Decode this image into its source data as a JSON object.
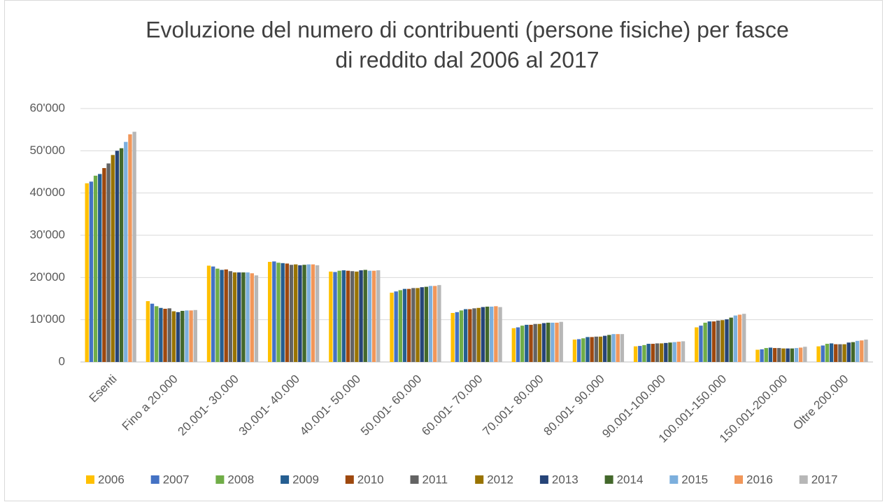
{
  "chart_data": {
    "type": "bar",
    "title": [
      "Evoluzione del numero di contribuenti (persone fisiche) per fasce",
      "di reddito dal 2006 al 2017"
    ],
    "categories": [
      "Esenti",
      "Fino a 20.000",
      "20.001- 30.000",
      "30.001- 40.000",
      "40.001- 50.000",
      "50.001- 60.000",
      "60.001- 70.000",
      "70.001- 80.000",
      "80.001- 90.000",
      "90.001-100.000",
      "100.001-150.000",
      "150.001-200.000",
      "Oltre 200.000"
    ],
    "series": [
      {
        "name": "2006",
        "color": "#ffc000",
        "values": [
          42300,
          14400,
          22800,
          23700,
          21400,
          16400,
          11600,
          8000,
          5300,
          3700,
          8200,
          2900,
          3700
        ]
      },
      {
        "name": "2007",
        "color": "#4472c4",
        "values": [
          42700,
          13800,
          22600,
          23800,
          21300,
          16700,
          11800,
          8200,
          5400,
          3800,
          8600,
          3000,
          3900
        ]
      },
      {
        "name": "2008",
        "color": "#70ad47",
        "values": [
          44100,
          13200,
          22100,
          23500,
          21600,
          17000,
          12200,
          8600,
          5600,
          4000,
          9300,
          3300,
          4300
        ]
      },
      {
        "name": "2009",
        "color": "#255e91",
        "values": [
          44500,
          12800,
          21800,
          23400,
          21700,
          17300,
          12500,
          8800,
          5900,
          4300,
          9600,
          3400,
          4400
        ]
      },
      {
        "name": "2010",
        "color": "#9e480e",
        "values": [
          45900,
          12600,
          21900,
          23300,
          21600,
          17300,
          12500,
          8800,
          5900,
          4300,
          9600,
          3300,
          4200
        ]
      },
      {
        "name": "2011",
        "color": "#636363",
        "values": [
          47000,
          12700,
          21500,
          23000,
          21500,
          17500,
          12700,
          9000,
          6000,
          4400,
          9800,
          3300,
          4200
        ]
      },
      {
        "name": "2012",
        "color": "#997300",
        "values": [
          49000,
          12000,
          21200,
          23100,
          21400,
          17500,
          12800,
          9000,
          6000,
          4400,
          9900,
          3200,
          4200
        ]
      },
      {
        "name": "2013",
        "color": "#264478",
        "values": [
          50000,
          11800,
          21200,
          22900,
          21700,
          17700,
          13000,
          9200,
          6200,
          4500,
          10100,
          3200,
          4600
        ]
      },
      {
        "name": "2014",
        "color": "#43682b",
        "values": [
          50600,
          12100,
          21200,
          23000,
          21800,
          17800,
          13100,
          9300,
          6400,
          4600,
          10500,
          3200,
          4700
        ]
      },
      {
        "name": "2015",
        "color": "#7cafdd",
        "values": [
          52100,
          12200,
          21200,
          23100,
          21600,
          18000,
          13100,
          9300,
          6600,
          4700,
          11000,
          3300,
          5000
        ]
      },
      {
        "name": "2016",
        "color": "#f1975a",
        "values": [
          53900,
          12200,
          21000,
          23100,
          21600,
          18000,
          13200,
          9300,
          6600,
          4800,
          11200,
          3400,
          5100
        ]
      },
      {
        "name": "2017",
        "color": "#b7b7b7",
        "values": [
          54500,
          12300,
          20500,
          22900,
          21700,
          18200,
          13000,
          9500,
          6600,
          4900,
          11400,
          3600,
          5300
        ]
      }
    ],
    "ylim": [
      0,
      60000
    ],
    "yticks": [
      0,
      {
        "value": 10000,
        "label": "10'000"
      },
      {
        "value": 20000,
        "label": "20'000"
      },
      {
        "value": 30000,
        "label": "30'000"
      },
      {
        "value": 40000,
        "label": "40'000"
      },
      {
        "value": 50000,
        "label": "50'000"
      },
      {
        "value": 60000,
        "label": "60'000"
      }
    ],
    "grid": true,
    "legend": "bottom"
  }
}
